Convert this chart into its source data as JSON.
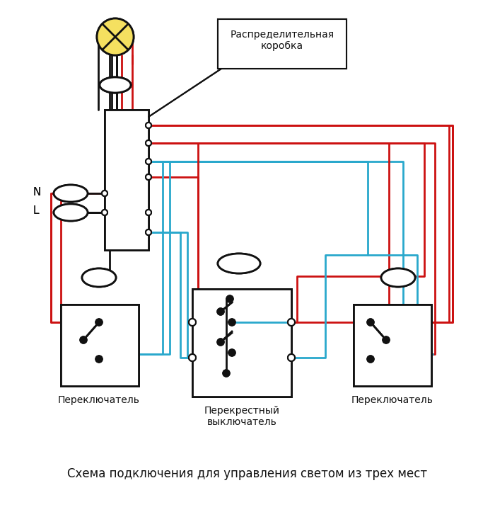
{
  "title": "Схема подключения для управления светом из трех мест",
  "label_switch1": "Переключатель",
  "label_cross": "Перекрестный\nвыключатель",
  "label_switch2": "Переключатель",
  "label_box": "Распределительная\nкоробка",
  "label_N": "N",
  "label_L": "L",
  "bg": "#ffffff",
  "bk": "#111111",
  "rd": "#cc1111",
  "bl": "#29a8cc",
  "bulb_fill": "#f5e060",
  "title_fs": 12
}
